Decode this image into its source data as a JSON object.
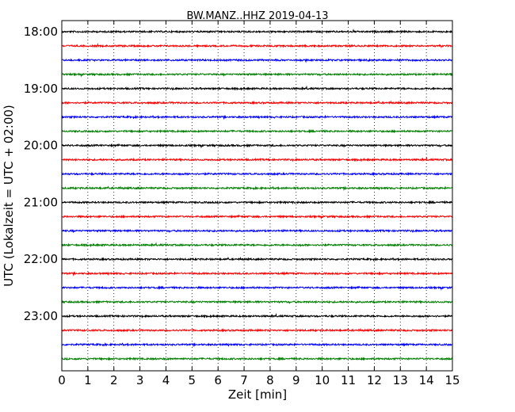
{
  "chart_data": {
    "type": "line",
    "title": "BW.MANZ..HHZ 2019-04-13",
    "xlabel": "Zeit  [min]",
    "ylabel": "UTC (Lokalzeit = UTC + 02:00)",
    "xlim": [
      0,
      15
    ],
    "x_ticks": [
      "0",
      "1",
      "2",
      "3",
      "4",
      "5",
      "6",
      "7",
      "8",
      "9",
      "10",
      "11",
      "12",
      "13",
      "14",
      "15"
    ],
    "y_tick_labels": [
      "18:00",
      "19:00",
      "20:00",
      "21:00",
      "22:00",
      "23:00"
    ],
    "grid": "vertical dotted",
    "trace_interval_minutes": 15,
    "trace_start_times": [
      "18:00",
      "18:15",
      "18:30",
      "18:45",
      "19:00",
      "19:15",
      "19:30",
      "19:45",
      "20:00",
      "20:15",
      "20:30",
      "20:45",
      "21:00",
      "21:15",
      "21:30",
      "21:45",
      "22:00",
      "22:15",
      "22:30",
      "22:45",
      "23:00",
      "23:15",
      "23:30",
      "23:45"
    ],
    "colors_cycle": [
      "#000000",
      "#ff0000",
      "#0000ff",
      "#008000"
    ]
  }
}
